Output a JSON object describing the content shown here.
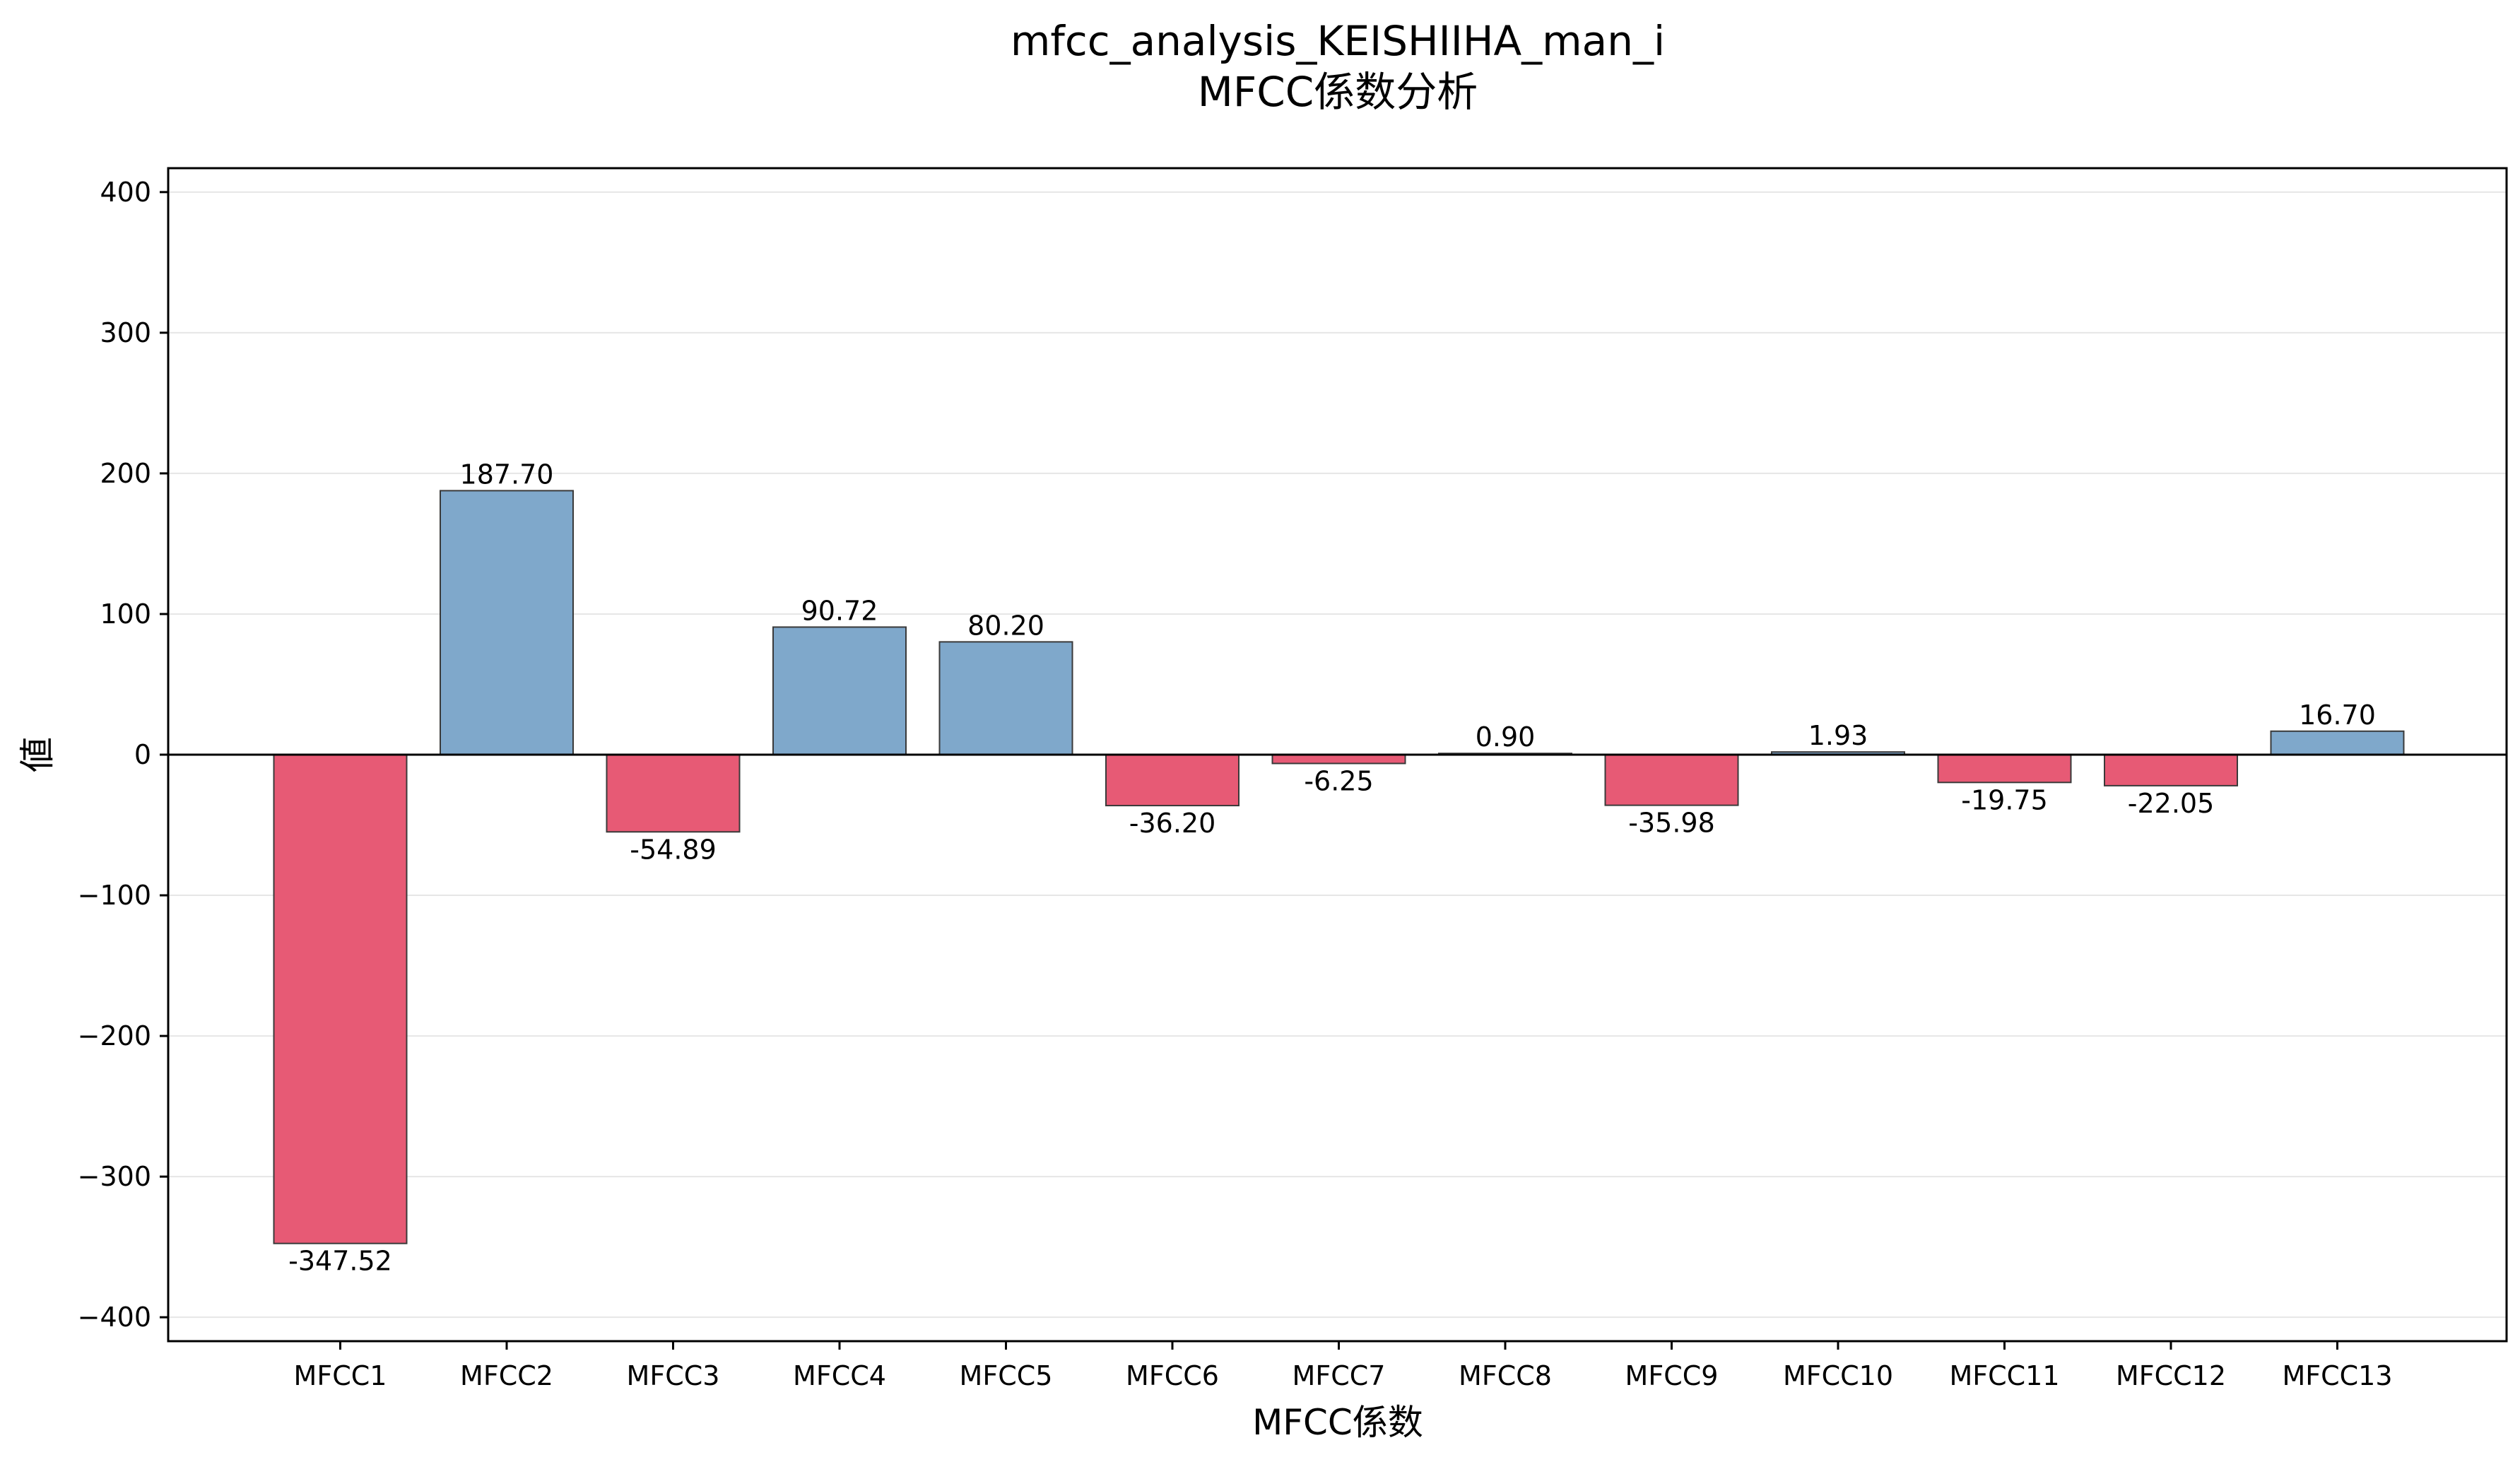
{
  "chart_data": {
    "type": "bar",
    "title": "mfcc_analysis_KEISHIIHA_man_i",
    "subtitle": "MFCC係数分析",
    "xlabel": "MFCC係数",
    "ylabel": "値",
    "categories": [
      "MFCC1",
      "MFCC2",
      "MFCC3",
      "MFCC4",
      "MFCC5",
      "MFCC6",
      "MFCC7",
      "MFCC8",
      "MFCC9",
      "MFCC10",
      "MFCC11",
      "MFCC12",
      "MFCC13"
    ],
    "values": [
      -347.52,
      187.7,
      -54.89,
      90.72,
      80.2,
      -36.2,
      -6.25,
      0.9,
      -35.98,
      1.93,
      -19.75,
      -22.05,
      16.7
    ],
    "data_labels": [
      "-347.52",
      "187.70",
      "-54.89",
      "90.72",
      "80.20",
      "-36.20",
      "-6.25",
      "0.90",
      "-35.98",
      "1.93",
      "-19.75",
      "-22.05",
      "16.70"
    ],
    "ylim": [
      -417,
      417
    ],
    "yticks": [
      -400,
      -300,
      -200,
      -100,
      0,
      100,
      200,
      300,
      400
    ],
    "ytick_labels": [
      "−400",
      "−300",
      "−200",
      "−100",
      "0",
      "100",
      "200",
      "300",
      "400"
    ],
    "grid": true,
    "colors": {
      "positive": "#7fa8cb",
      "negative": "#e75a75",
      "edge": "#3a3a3a",
      "grid": "#e6e6e6",
      "zero_line": "#000000"
    }
  }
}
